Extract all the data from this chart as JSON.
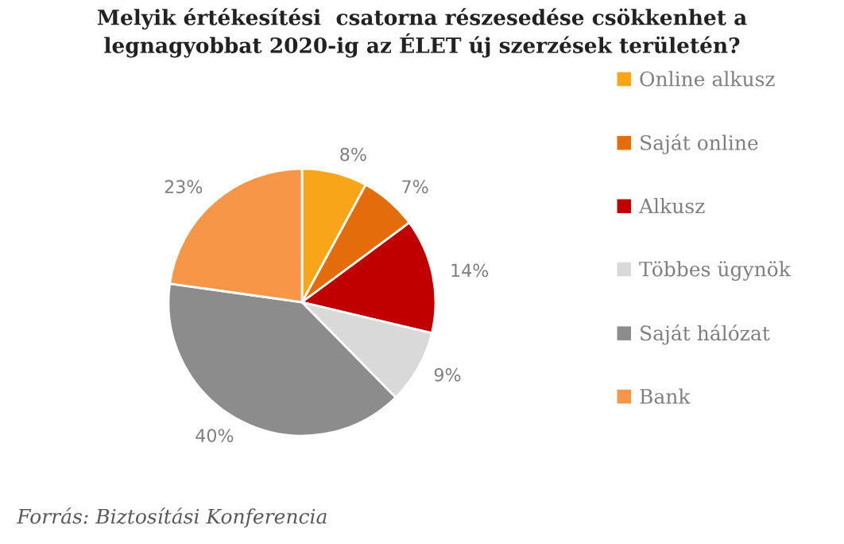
{
  "chart_data": {
    "type": "pie",
    "title": "Melyik értékesítési  csatorna részesedése csökkenhet a\nlegnagyobbat 2020-ig az ÉLET új szerzések területén?",
    "categories": [
      "Online alkusz",
      "Saját online",
      "Alkusz",
      "Többes ügynök",
      "Saját hálózat",
      "Bank"
    ],
    "values": [
      8,
      7,
      14,
      9,
      40,
      23
    ],
    "value_labels": [
      "8%",
      "7%",
      "14%",
      "9%",
      "40%",
      "23%"
    ],
    "colors": [
      "#f9a51a",
      "#e46c0a",
      "#c00000",
      "#d9d9d9",
      "#8c8c8c",
      "#f79646"
    ],
    "legend": "right",
    "annotations": [
      "Forrás: Biztosítási Konferencia"
    ]
  }
}
